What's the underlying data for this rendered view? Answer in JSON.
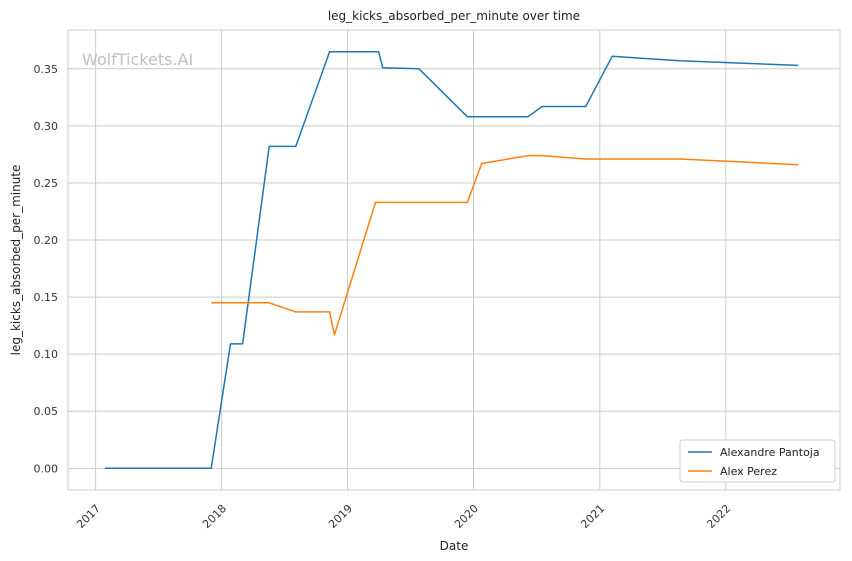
{
  "watermark": "WolfTickets.AI",
  "chart_data": {
    "type": "line",
    "title": "leg_kicks_absorbed_per_minute over time",
    "xlabel": "Date",
    "ylabel": "leg_kicks_absorbed_per_minute",
    "x_ticks": [
      "2017",
      "2018",
      "2019",
      "2020",
      "2021",
      "2022"
    ],
    "y_ticks": [
      "0.00",
      "0.05",
      "0.10",
      "0.15",
      "0.20",
      "0.25",
      "0.30",
      "0.35"
    ],
    "xlim": [
      "2016-10-13",
      "2022-11-28"
    ],
    "ylim": [
      -0.019,
      0.384
    ],
    "grid": true,
    "legend_position": "lower-right",
    "series": [
      {
        "name": "Alexandre Pantoja",
        "color": "#1f77b4",
        "points": [
          [
            "2017-01-28",
            0.0
          ],
          [
            "2017-12-02",
            0.0
          ],
          [
            "2018-01-27",
            0.109
          ],
          [
            "2018-03-03",
            0.109
          ],
          [
            "2018-05-19",
            0.282
          ],
          [
            "2018-08-04",
            0.282
          ],
          [
            "2018-11-10",
            0.365
          ],
          [
            "2019-04-01",
            0.365
          ],
          [
            "2019-04-13",
            0.351
          ],
          [
            "2019-07-27",
            0.35
          ],
          [
            "2019-12-14",
            0.308
          ],
          [
            "2020-06-07",
            0.308
          ],
          [
            "2020-07-18",
            0.317
          ],
          [
            "2020-11-21",
            0.317
          ],
          [
            "2021-02-06",
            0.361
          ],
          [
            "2021-08-21",
            0.357
          ],
          [
            "2022-07-30",
            0.353
          ]
        ]
      },
      {
        "name": "Alex Perez",
        "color": "#ff7f0e",
        "points": [
          [
            "2017-12-02",
            0.145
          ],
          [
            "2018-05-19",
            0.145
          ],
          [
            "2018-08-04",
            0.137
          ],
          [
            "2018-11-10",
            0.137
          ],
          [
            "2018-11-24",
            0.117
          ],
          [
            "2019-03-23",
            0.233
          ],
          [
            "2019-12-14",
            0.233
          ],
          [
            "2020-01-25",
            0.267
          ],
          [
            "2020-06-07",
            0.274
          ],
          [
            "2020-07-18",
            0.274
          ],
          [
            "2020-11-21",
            0.271
          ],
          [
            "2021-08-21",
            0.271
          ],
          [
            "2022-07-30",
            0.266
          ]
        ]
      }
    ]
  }
}
